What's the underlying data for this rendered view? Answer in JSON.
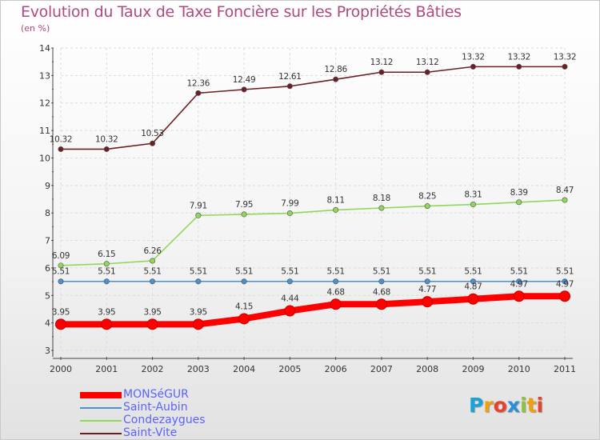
{
  "title": "Evolution du Taux de Taxe Foncière sur les Propriétés Bâties",
  "subtitle": "(en %)",
  "logo": {
    "text": "Proxiti",
    "letter_colors": [
      "#1aa3d9",
      "#f0a10a",
      "#e8432a",
      "#2a8fd9",
      "#8bc63e",
      "#f0a10a",
      "#e8432a"
    ]
  },
  "chart_data": {
    "type": "line",
    "x": [
      "2000",
      "2001",
      "2002",
      "2003",
      "2004",
      "2005",
      "2006",
      "2007",
      "2008",
      "2009",
      "2010",
      "2011"
    ],
    "ylim": [
      3,
      14
    ],
    "yticks": [
      "3",
      "4",
      "5",
      "6",
      "7",
      "8",
      "9",
      "10",
      "11",
      "12",
      "13",
      "14"
    ],
    "grid": true,
    "legend_position": "bottom-left",
    "series": [
      {
        "name": "MONSéGUR",
        "color": "#ff0000",
        "values": [
          3.95,
          3.95,
          3.95,
          3.95,
          4.15,
          4.44,
          4.68,
          4.68,
          4.77,
          4.87,
          4.97,
          4.97
        ],
        "labels": [
          "3.95",
          "3.95",
          "3.95",
          "3.95",
          "4.15",
          "4.44",
          "4.68",
          "4.68",
          "4.77",
          "4.87",
          "4.97",
          "4.97"
        ]
      },
      {
        "name": "Saint-Aubin",
        "color": "#4a90d9",
        "values": [
          5.51,
          5.51,
          5.51,
          5.51,
          5.51,
          5.51,
          5.51,
          5.51,
          5.51,
          5.51,
          5.51,
          5.51
        ],
        "labels": [
          "5.51",
          "5.51",
          "5.51",
          "5.51",
          "5.51",
          "5.51",
          "5.51",
          "5.51",
          "5.51",
          "5.51",
          "5.51",
          "5.51"
        ]
      },
      {
        "name": "Condezaygues",
        "color": "#8fd85a",
        "values": [
          6.09,
          6.15,
          6.26,
          7.91,
          7.95,
          7.99,
          8.11,
          8.18,
          8.25,
          8.31,
          8.39,
          8.47
        ],
        "labels": [
          "6.09",
          "6.15",
          "6.26",
          "7.91",
          "7.95",
          "7.99",
          "8.11",
          "8.18",
          "8.25",
          "8.31",
          "8.39",
          "8.47"
        ]
      },
      {
        "name": "Saint-Vite",
        "color": "#6b1e24",
        "values": [
          10.32,
          10.32,
          10.53,
          12.36,
          12.49,
          12.61,
          12.86,
          13.12,
          13.12,
          13.32,
          13.32,
          13.32
        ],
        "labels": [
          "10.32",
          "10.32",
          "10.53",
          "12.36",
          "12.49",
          "12.61",
          "12.86",
          "13.12",
          "13.12",
          "13.32",
          "13.32",
          "13.32"
        ]
      }
    ]
  }
}
